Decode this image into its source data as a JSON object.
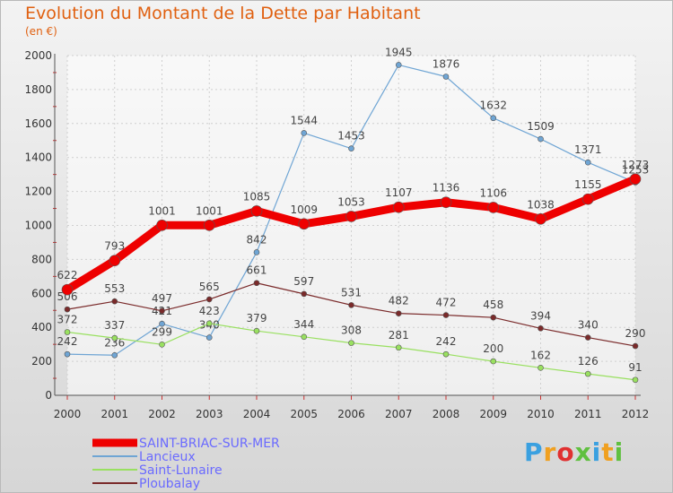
{
  "header": {
    "title": "Evolution du Montant de la Dette par Habitant",
    "subtitle": "(en €)"
  },
  "logo": {
    "letters": [
      "P",
      "r",
      "o",
      "x",
      "i",
      "t",
      "i"
    ]
  },
  "chart_data": {
    "type": "line",
    "x": [
      "2000",
      "2001",
      "2002",
      "2003",
      "2004",
      "2005",
      "2006",
      "2007",
      "2008",
      "2009",
      "2010",
      "2011",
      "2012"
    ],
    "ylim": [
      0,
      2000
    ],
    "yticks": [
      "0",
      "200",
      "400",
      "600",
      "800",
      "1000",
      "1200",
      "1400",
      "1600",
      "1800",
      "2000"
    ],
    "grid": true,
    "legend_position": "bottom-left",
    "series": [
      {
        "name": "Lancieux",
        "color": "#6fa5d4",
        "width": 1.2,
        "values": [
          242,
          236,
          421,
          340,
          842,
          1544,
          1453,
          1945,
          1876,
          1632,
          1509,
          1371,
          1253
        ]
      },
      {
        "name": "Saint-Lunaire",
        "color": "#99e060",
        "width": 1.2,
        "values": [
          372,
          337,
          299,
          423,
          379,
          344,
          308,
          281,
          242,
          200,
          162,
          126,
          91
        ]
      },
      {
        "name": "Ploubalay",
        "color": "#7a2a2a",
        "width": 1.2,
        "values": [
          506,
          553,
          497,
          565,
          661,
          597,
          531,
          482,
          472,
          458,
          394,
          340,
          290
        ]
      },
      {
        "name": "SAINT-BRIAC-SUR-MER",
        "color": "#ee0000",
        "width": 9,
        "values": [
          622,
          793,
          1001,
          1001,
          1085,
          1009,
          1053,
          1107,
          1136,
          1106,
          1038,
          1155,
          1273
        ]
      }
    ],
    "legend_order": [
      "SAINT-BRIAC-SUR-MER",
      "Lancieux",
      "Saint-Lunaire",
      "Ploubalay"
    ],
    "legend_text_color": "#6a6aff"
  }
}
